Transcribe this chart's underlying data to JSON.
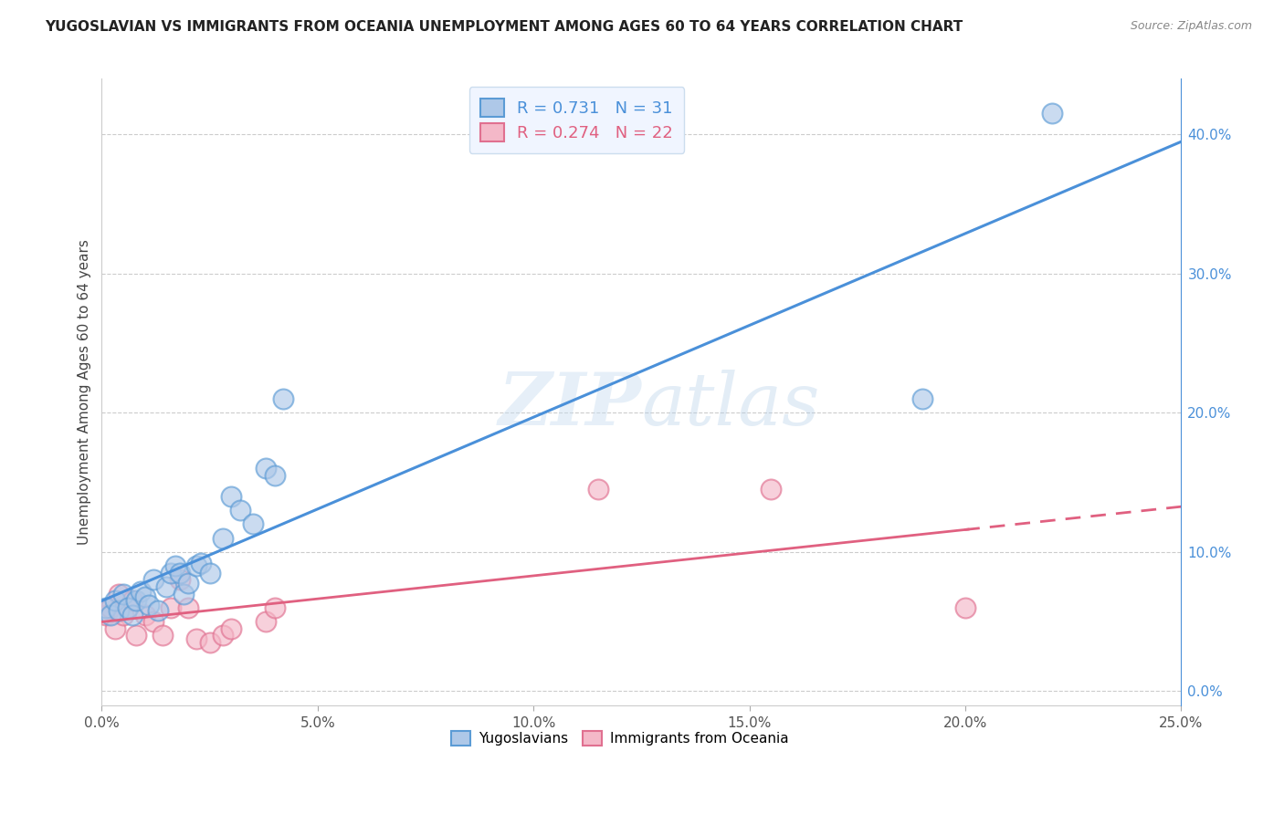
{
  "title": "YUGOSLAVIAN VS IMMIGRANTS FROM OCEANIA UNEMPLOYMENT AMONG AGES 60 TO 64 YEARS CORRELATION CHART",
  "source": "Source: ZipAtlas.com",
  "ylabel": "Unemployment Among Ages 60 to 64 years",
  "xlim": [
    0.0,
    0.25
  ],
  "ylim": [
    -0.01,
    0.44
  ],
  "watermark": "ZIPatlas",
  "yug_x": [
    0.001,
    0.002,
    0.003,
    0.004,
    0.005,
    0.006,
    0.007,
    0.008,
    0.009,
    0.01,
    0.011,
    0.012,
    0.013,
    0.015,
    0.016,
    0.017,
    0.018,
    0.019,
    0.02,
    0.022,
    0.023,
    0.025,
    0.028,
    0.03,
    0.032,
    0.035,
    0.038,
    0.04,
    0.042,
    0.19,
    0.22
  ],
  "yug_y": [
    0.06,
    0.055,
    0.065,
    0.058,
    0.07,
    0.06,
    0.055,
    0.065,
    0.072,
    0.068,
    0.062,
    0.08,
    0.058,
    0.075,
    0.085,
    0.09,
    0.085,
    0.07,
    0.078,
    0.09,
    0.092,
    0.085,
    0.11,
    0.14,
    0.13,
    0.12,
    0.16,
    0.155,
    0.21,
    0.21,
    0.415
  ],
  "oce_x": [
    0.001,
    0.002,
    0.003,
    0.004,
    0.005,
    0.007,
    0.008,
    0.01,
    0.012,
    0.014,
    0.016,
    0.018,
    0.02,
    0.022,
    0.025,
    0.028,
    0.03,
    0.038,
    0.04,
    0.115,
    0.155,
    0.2
  ],
  "oce_y": [
    0.055,
    0.06,
    0.045,
    0.07,
    0.055,
    0.065,
    0.04,
    0.055,
    0.05,
    0.04,
    0.06,
    0.08,
    0.06,
    0.038,
    0.035,
    0.04,
    0.045,
    0.05,
    0.06,
    0.145,
    0.145,
    0.06
  ],
  "yug_R": 0.731,
  "yug_N": 31,
  "oce_R": 0.274,
  "oce_N": 22,
  "blue_fill": "#aec8e8",
  "blue_edge": "#5b9bd5",
  "pink_fill": "#f4b8c8",
  "pink_edge": "#e07090",
  "blue_line": "#4a90d9",
  "pink_line": "#e06080",
  "xtick_labels": [
    "0.0%",
    "5.0%",
    "10.0%",
    "15.0%",
    "20.0%",
    "25.0%"
  ],
  "ytick_labels": [
    "0.0%",
    "10.0%",
    "20.0%",
    "30.0%",
    "40.0%"
  ],
  "xtick_vals": [
    0.0,
    0.05,
    0.1,
    0.15,
    0.2,
    0.25
  ],
  "ytick_vals": [
    0.0,
    0.1,
    0.2,
    0.3,
    0.4
  ]
}
